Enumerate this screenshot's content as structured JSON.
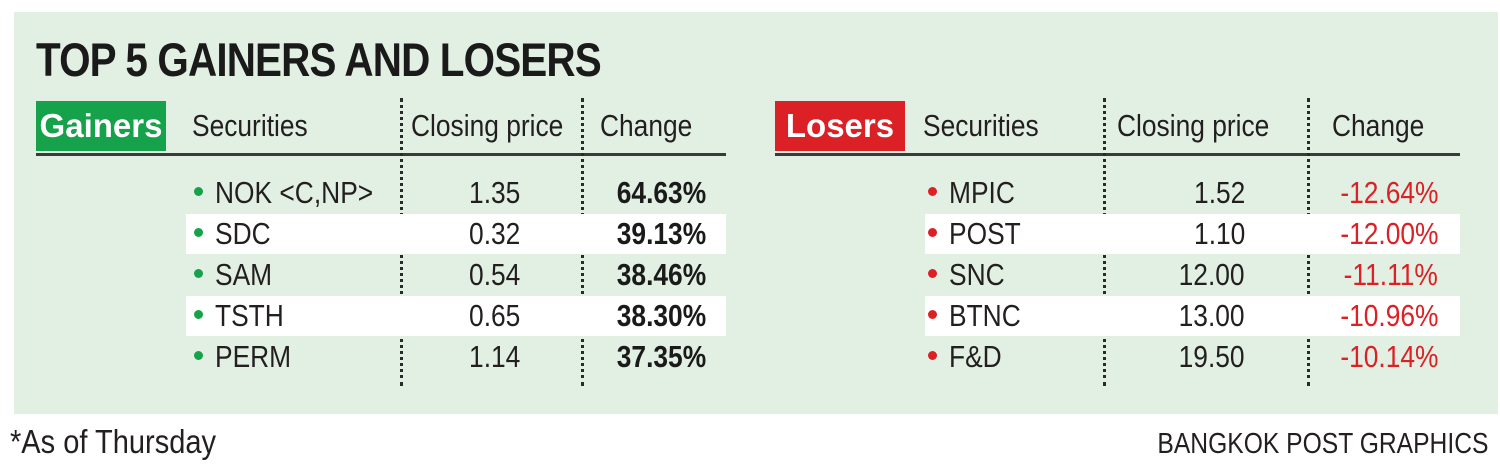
{
  "title": "TOP 5 GAINERS AND LOSERS",
  "columns": {
    "securities": "Securities",
    "closing_price": "Closing price",
    "change": "Change"
  },
  "gainers": {
    "label": "Gainers",
    "color": "#16a24a",
    "rows": [
      {
        "security": "NOK <C,NP>",
        "closing_price": "1.35",
        "change": "64.63%"
      },
      {
        "security": "SDC",
        "closing_price": "0.32",
        "change": "39.13%"
      },
      {
        "security": "SAM",
        "closing_price": "0.54",
        "change": "38.46%"
      },
      {
        "security": "TSTH",
        "closing_price": "0.65",
        "change": "38.30%"
      },
      {
        "security": "PERM",
        "closing_price": "1.14",
        "change": "37.35%"
      }
    ]
  },
  "losers": {
    "label": "Losers",
    "color": "#dc2126",
    "rows": [
      {
        "security": "MPIC",
        "closing_price": "1.52",
        "change": "-12.64%"
      },
      {
        "security": "POST",
        "closing_price": "1.10",
        "change": "-12.00%"
      },
      {
        "security": "SNC",
        "closing_price": "12.00",
        "change": "-11.11%"
      },
      {
        "security": "BTNC",
        "closing_price": "13.00",
        "change": "-10.96%"
      },
      {
        "security": "F&D",
        "closing_price": "19.50",
        "change": "-10.14%"
      }
    ]
  },
  "footnote": "*As of Thursday",
  "credit": "BANGKOK POST GRAPHICS"
}
